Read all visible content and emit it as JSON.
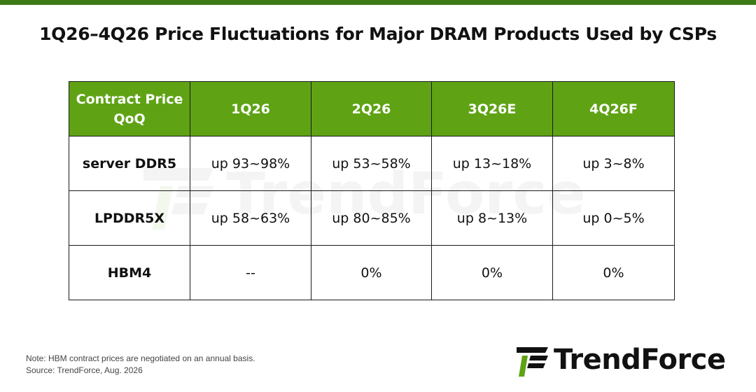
{
  "title": "1Q26–4Q26 Price Fluctuations for Major DRAM Products Used by CSPs",
  "chart_data": {
    "type": "table",
    "columns": [
      "Contract Price QoQ",
      "1Q26",
      "2Q26",
      "3Q26E",
      "4Q26F"
    ],
    "header_first_lines": [
      "Contract Price",
      "QoQ"
    ],
    "rows": [
      {
        "product": "server DDR5",
        "values": [
          "up 93~98%",
          "up 53~58%",
          "up 13~18%",
          "up 3~8%"
        ]
      },
      {
        "product": "LPDDR5X",
        "values": [
          "up 58~63%",
          "up 80~85%",
          "up 8~13%",
          "up 0~5%"
        ]
      },
      {
        "product": "HBM4",
        "values": [
          "--",
          "0%",
          "0%",
          "0%"
        ]
      }
    ]
  },
  "footer": {
    "note": "Note: HBM contract prices are negotiated on an annual basis.",
    "source": "Source: TrendForce, Aug. 2026"
  },
  "brand": {
    "name": "TrendForce",
    "logo_icon": "trendforce-logo-icon",
    "accent_color": "#5fa315",
    "top_bar_color": "#3d7a17"
  }
}
